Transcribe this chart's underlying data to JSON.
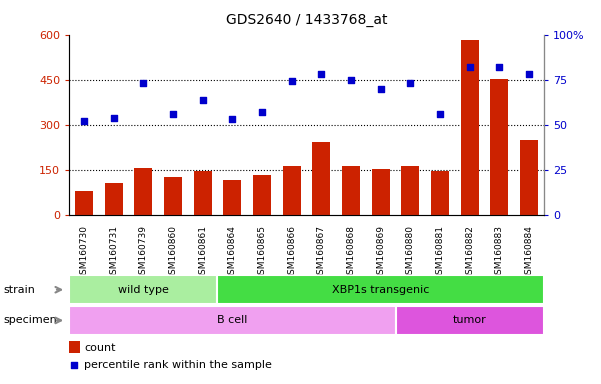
{
  "title": "GDS2640 / 1433768_at",
  "samples": [
    "GSM160730",
    "GSM160731",
    "GSM160739",
    "GSM160860",
    "GSM160861",
    "GSM160864",
    "GSM160865",
    "GSM160866",
    "GSM160867",
    "GSM160868",
    "GSM160869",
    "GSM160880",
    "GSM160881",
    "GSM160882",
    "GSM160883",
    "GSM160884"
  ],
  "counts": [
    80,
    108,
    155,
    128,
    148,
    118,
    132,
    162,
    242,
    162,
    152,
    162,
    145,
    582,
    452,
    248
  ],
  "percentiles": [
    52,
    54,
    73,
    56,
    64,
    53,
    57,
    74,
    78,
    75,
    70,
    73,
    56,
    82,
    82,
    78
  ],
  "bar_color": "#cc2200",
  "dot_color": "#0000cc",
  "ylim_left": [
    0,
    600
  ],
  "ylim_right": [
    0,
    100
  ],
  "yticks_left": [
    0,
    150,
    300,
    450,
    600
  ],
  "ytick_labels_left": [
    "0",
    "150",
    "300",
    "450",
    "600"
  ],
  "yticks_right": [
    0,
    25,
    50,
    75,
    100
  ],
  "ytick_labels_right": [
    "0",
    "25",
    "50",
    "75",
    "100%"
  ],
  "grid_values": [
    150,
    300,
    450
  ],
  "strain_groups": [
    {
      "label": "wild type",
      "start": 0,
      "end": 5,
      "color": "#aaeea0"
    },
    {
      "label": "XBP1s transgenic",
      "start": 5,
      "end": 16,
      "color": "#44dd44"
    }
  ],
  "specimen_groups": [
    {
      "label": "B cell",
      "start": 0,
      "end": 11,
      "color": "#f0a0f0"
    },
    {
      "label": "tumor",
      "start": 11,
      "end": 16,
      "color": "#dd55dd"
    }
  ],
  "strain_label": "strain",
  "specimen_label": "specimen",
  "legend_count_label": "count",
  "legend_pct_label": "percentile rank within the sample"
}
